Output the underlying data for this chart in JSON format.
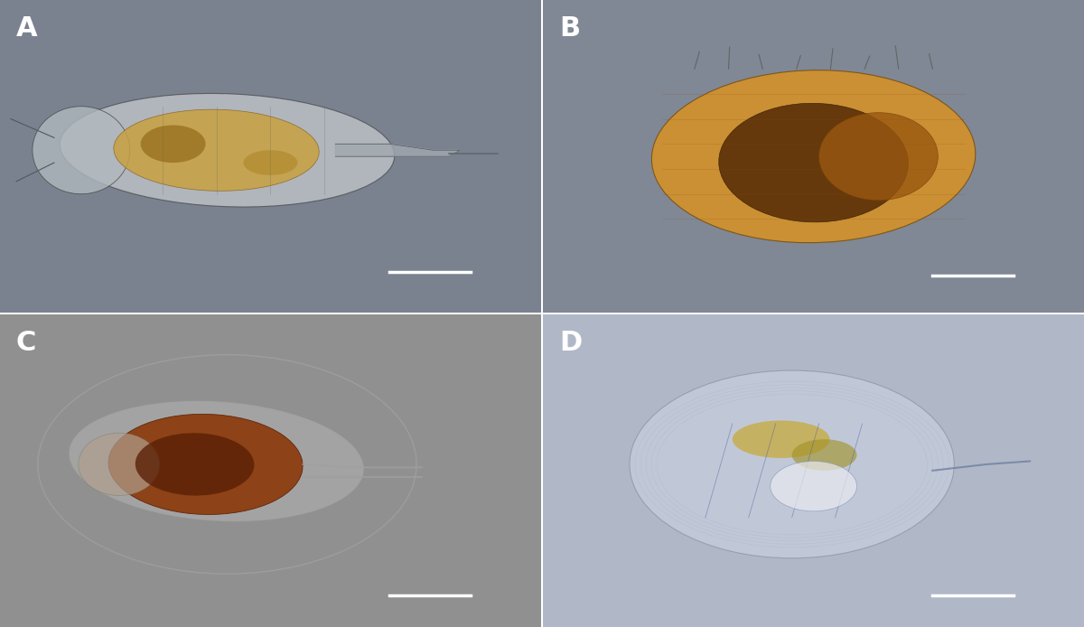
{
  "labels": [
    "A",
    "B",
    "C",
    "D"
  ],
  "label_color": "white",
  "label_fontsize": 22,
  "label_fontweight": "bold",
  "bg_color_top_left": "#7a8290",
  "bg_color_top_right": "#808895",
  "bg_color_bottom_left": "#909090",
  "bg_color_bottom_right": "#b0b8c8",
  "divider_color": "white",
  "figure_width": 12.0,
  "figure_height": 6.94,
  "dpi": 100
}
